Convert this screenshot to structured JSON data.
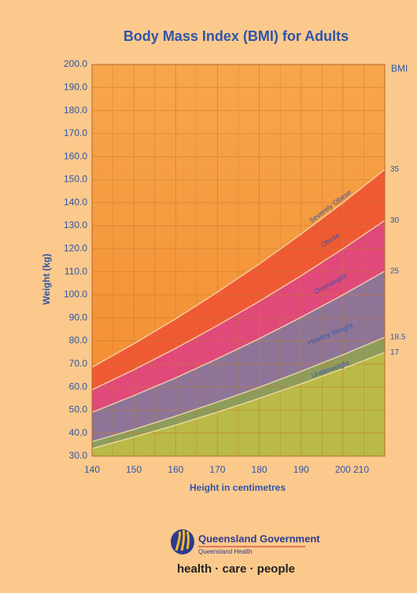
{
  "chart_data": {
    "type": "area",
    "title": "Body Mass Index (BMI) for Adults",
    "x_label": "Height in centimetres",
    "y_label": "Weight (kg)",
    "bmi_axis_label": "BMI",
    "x": [
      140,
      150,
      160,
      170,
      180,
      190,
      200,
      210
    ],
    "xlim": [
      140,
      210
    ],
    "xticks": [
      140,
      150,
      160,
      170,
      180,
      190,
      200,
      210
    ],
    "ylim": [
      30,
      200
    ],
    "yticks": [
      {
        "value": 30,
        "label": "30.0"
      },
      {
        "value": 40,
        "label": "40.0"
      },
      {
        "value": 50,
        "label": "50.0"
      },
      {
        "value": 60,
        "label": "60.0"
      },
      {
        "value": 70,
        "label": "70.0"
      },
      {
        "value": 80,
        "label": "80.0"
      },
      {
        "value": 90,
        "label": "90.0"
      },
      {
        "value": 100,
        "label": "100.0"
      },
      {
        "value": 110,
        "label": "110.0"
      },
      {
        "value": 120,
        "label": "120.0"
      },
      {
        "value": 130,
        "label": "130.0"
      },
      {
        "value": 140,
        "label": "140.0"
      },
      {
        "value": 150,
        "label": "150.0"
      },
      {
        "value": 160,
        "label": "160.0"
      },
      {
        "value": 170,
        "label": "170.0"
      },
      {
        "value": 180,
        "label": "180.0"
      },
      {
        "value": 190,
        "label": "190.0"
      },
      {
        "value": 200,
        "label": "200.0"
      }
    ],
    "grid": true,
    "series": [
      {
        "bmi": 17,
        "color": "#b9ba48",
        "values": [
          33.3,
          38.3,
          43.5,
          49.1,
          55.1,
          61.4,
          68.0,
          75.0
        ]
      },
      {
        "bmi": 18.5,
        "color": "#8e9c5c",
        "values": [
          36.3,
          41.6,
          47.4,
          53.5,
          59.9,
          66.8,
          74.0,
          81.6
        ]
      },
      {
        "bmi": 25,
        "color": "#8e7598",
        "values": [
          49.0,
          56.3,
          64.0,
          72.3,
          81.0,
          90.3,
          100.0,
          110.3
        ]
      },
      {
        "bmi": 30,
        "color": "#e0497a",
        "values": [
          58.8,
          67.5,
          76.8,
          86.7,
          97.2,
          108.3,
          120.0,
          132.3
        ]
      },
      {
        "bmi": 35,
        "color": "#ef5a34",
        "values": [
          68.6,
          78.8,
          89.6,
          101.2,
          113.4,
          126.4,
          140.0,
          154.4
        ]
      }
    ],
    "band_names": [
      "Underweight",
      "Healthy Weight",
      "Overweight",
      "Obese",
      "Severely Obese"
    ]
  },
  "footer": {
    "government": "Queensland Government",
    "department": "Queensland Health",
    "slogan": "health · care · people"
  }
}
